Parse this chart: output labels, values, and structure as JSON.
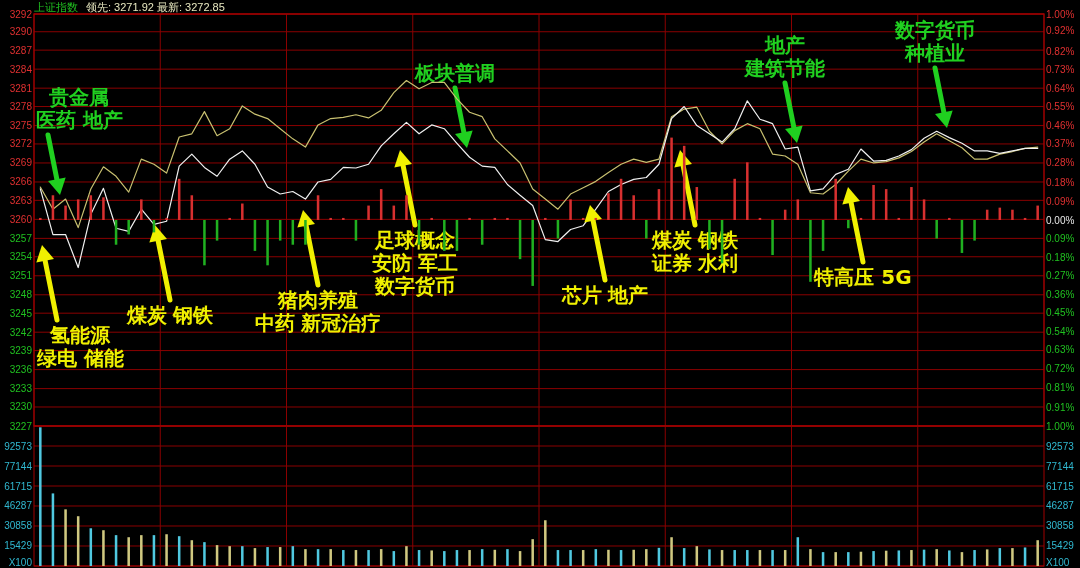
{
  "chart_data": [
    {
      "type": "line",
      "title": "上证指数",
      "subtitle": "领先: 3271.92 最新: 3272.85",
      "categories": [
        null,
        null,
        null,
        null,
        null,
        null,
        null,
        null,
        null,
        null,
        null,
        null,
        null,
        null,
        null,
        null,
        null,
        null,
        null,
        null,
        null,
        null,
        null,
        null,
        null,
        null,
        null,
        null,
        null,
        null,
        null,
        null,
        null,
        null,
        null,
        null,
        null,
        null,
        null,
        null,
        null,
        null,
        null,
        null,
        null,
        null,
        null,
        null,
        null,
        null,
        null,
        null,
        null,
        null,
        null,
        null,
        null,
        null,
        null,
        null,
        null,
        null,
        null,
        null,
        null,
        null,
        null,
        null,
        null,
        null,
        null,
        null,
        null,
        null,
        null,
        null,
        null,
        null,
        null,
        null
      ],
      "ylim": [
        3227.4,
        3292.4
      ],
      "yticks": [
        {
          "value": 3292.4,
          "label": "3292"
        },
        {
          "value": 3289.6,
          "label": "3290"
        },
        {
          "value": 3286.7,
          "label": "3287"
        },
        {
          "value": 3283.7,
          "label": "3284"
        },
        {
          "value": 3280.7,
          "label": "3281"
        },
        {
          "value": 3277.8,
          "label": "3278"
        },
        {
          "value": 3274.8,
          "label": "3275"
        },
        {
          "value": 3271.9,
          "label": "3272"
        },
        {
          "value": 3268.9,
          "label": "3269"
        },
        {
          "value": 3265.9,
          "label": "3266"
        },
        {
          "value": 3263.0,
          "label": "3263"
        },
        3260,
        {
          "value": 3257.0,
          "label": "3257"
        },
        {
          "value": 3254.1,
          "label": "3254"
        },
        {
          "value": 3251.1,
          "label": "3251"
        },
        {
          "value": 3248.1,
          "label": "3248"
        },
        {
          "value": 3245.2,
          "label": "3245"
        },
        {
          "value": 3242.2,
          "label": "3242"
        },
        {
          "value": 3239.3,
          "label": "3239"
        },
        {
          "value": 3236.3,
          "label": "3236"
        },
        {
          "value": 3233.3,
          "label": "3233"
        },
        {
          "value": 3230.4,
          "label": "3230"
        },
        {
          "value": 3227.4,
          "label": "3227"
        }
      ],
      "tick_labels": "y",
      "grid": true,
      "series": [
        {
          "color": "#c8c070",
          "values": [
            3265.1,
            3261.6,
            3263.2,
            3258.7,
            3264.8,
            3268.3,
            3266.8,
            3264.3,
            3269.5,
            3268.7,
            3267.3,
            3273.0,
            3273.5,
            3277.0,
            3273.2,
            3274.3,
            3277.9,
            3276.6,
            3275.9,
            3274.3,
            3272.7,
            3271.4,
            3274.9,
            3275.9,
            3276.1,
            3276.5,
            3276.0,
            3277.2,
            3280.0,
            3281.9,
            3280.6,
            3281.6,
            3281.6,
            3279.0,
            3276.9,
            3276.2,
            3272.7,
            3270.8,
            3268.9,
            3264.8,
            3263.2,
            3261.6,
            3264.0,
            3265.0,
            3266.0,
            3267.4,
            3268.7,
            3269.5,
            3269.0,
            3269.5,
            3276.2,
            3277.4,
            3277.7,
            3273.9,
            3271.9,
            3274.0,
            3275.1,
            3274.3,
            3270.3,
            3270.0,
            3268.7,
            3264.2,
            3264.0,
            3265.5,
            3267.6,
            3269.5,
            3268.9,
            3269.1,
            3269.7,
            3270.7,
            3272.2,
            3273.5,
            3272.4,
            3271.3,
            3269.5,
            3269.5,
            3270.3,
            3270.7,
            3271.2,
            3271.4
          ]
        },
        {
          "color": "#f0f0f0",
          "values": [
            3264.8,
            3257.6,
            3257.6,
            3252.4,
            3260.8,
            3264.9,
            3258.6,
            3258.1,
            3261.6,
            3259.2,
            3259.7,
            3268.4,
            3270.3,
            3268.2,
            3266.8,
            3269.5,
            3270.8,
            3268.7,
            3265.1,
            3264.0,
            3264.4,
            3263.2,
            3265.9,
            3266.3,
            3268.2,
            3268.1,
            3268.7,
            3271.6,
            3273.5,
            3275.3,
            3273.5,
            3274.9,
            3274.3,
            3272.0,
            3269.8,
            3268.4,
            3268.2,
            3265.5,
            3263.8,
            3262.2,
            3256.8,
            3256.5,
            3258.4,
            3259.0,
            3261.6,
            3264.4,
            3265.5,
            3266.3,
            3266.6,
            3268.7,
            3275.9,
            3277.8,
            3274.8,
            3273.5,
            3272.2,
            3274.3,
            3278.7,
            3275.8,
            3275.1,
            3271.1,
            3271.4,
            3264.5,
            3264.8,
            3267.1,
            3267.9,
            3271.1,
            3269.2,
            3269.3,
            3270.0,
            3271.0,
            3272.8,
            3273.9,
            3272.9,
            3272.0,
            3270.8,
            3270.8,
            3270.4,
            3270.8,
            3271.2,
            3271.2
          ]
        }
      ],
      "annotations": [
        "贵金属",
        "医药 地产",
        "板块普调",
        "地产",
        "建筑节能",
        "数字货币",
        "种植业"
      ]
    },
    {
      "type": "bar",
      "tick_labels": "y",
      "categories": [
        null,
        null,
        null,
        null,
        null,
        null,
        null,
        null,
        null,
        null,
        null,
        null,
        null,
        null,
        null,
        null,
        null,
        null,
        null,
        null,
        null,
        null,
        null,
        null,
        null,
        null,
        null,
        null,
        null,
        null,
        null,
        null,
        null,
        null,
        null,
        null,
        null,
        null,
        null,
        null,
        null,
        null,
        null,
        null,
        null,
        null,
        null,
        null,
        null,
        null,
        null,
        null,
        null,
        null,
        null,
        null,
        null,
        null,
        null,
        null,
        null,
        null,
        null,
        null,
        null,
        null,
        null,
        null,
        null,
        null,
        null,
        null,
        null,
        null,
        null,
        null,
        null,
        null,
        null,
        null
      ],
      "y2lim": [
        -1,
        1
      ],
      "y2ticks": [
        {
          "value": 1,
          "label": "1.00%"
        },
        {
          "value": 0.92,
          "label": "0.92%"
        },
        {
          "value": 0.82,
          "label": "0.82%"
        },
        {
          "value": 0.73,
          "label": "0.73%"
        },
        {
          "value": 0.64,
          "label": "0.64%"
        },
        {
          "value": 0.55,
          "label": "0.55%"
        },
        {
          "value": 0.46,
          "label": "0.46%"
        },
        {
          "value": 0.37,
          "label": "0.37%"
        },
        {
          "value": 0.28,
          "label": "0.28%"
        },
        {
          "value": 0.18,
          "label": "0.18%"
        },
        {
          "value": 0.09,
          "label": "0.09%"
        },
        {
          "value": 0,
          "label": "0.00%"
        },
        {
          "value": -0.09,
          "label": "0.09%"
        },
        {
          "value": -0.18,
          "label": "0.18%"
        },
        {
          "value": -0.27,
          "label": "0.27%"
        },
        {
          "value": -0.36,
          "label": "0.36%"
        },
        {
          "value": -0.45,
          "label": "0.45%"
        },
        {
          "value": -0.54,
          "label": "0.54%"
        },
        {
          "value": -0.63,
          "label": "0.63%"
        },
        {
          "value": -0.72,
          "label": "0.72%"
        },
        {
          "value": -0.815,
          "label": "0.81%"
        },
        {
          "value": -0.91,
          "label": "0.91%"
        },
        {
          "value": -1,
          "label": "1.00%"
        }
      ],
      "series": [
        {
          "axis": "y2",
          "values": [
            0.01,
            0.12,
            0.07,
            0.1,
            0.12,
            0.11,
            -0.12,
            -0.07,
            0.1,
            -0.06,
            0.01,
            0.2,
            0.12,
            -0.22,
            -0.1,
            0.01,
            0.08,
            -0.15,
            -0.22,
            -0.1,
            -0.12,
            -0.12,
            0.12,
            0.01,
            0.01,
            -0.1,
            0.07,
            0.15,
            0.07,
            0.12,
            -0.12,
            0.01,
            -0.15,
            -0.15,
            0.01,
            -0.12,
            0.01,
            0.01,
            -0.19,
            -0.32,
            0.01,
            -0.09,
            0.1,
            0.01,
            0.01,
            0.13,
            0.2,
            0.12,
            -0.09,
            0.15,
            0.4,
            0.36,
            0.16,
            -0.14,
            -0.21,
            0.2,
            0.28,
            0.01,
            -0.17,
            0.05,
            0.1,
            -0.3,
            -0.15,
            0.2,
            -0.04,
            0.01,
            0.17,
            0.15,
            0.01,
            0.16,
            0.1,
            -0.09,
            0.01,
            -0.16,
            -0.1,
            0.05,
            0.06,
            0.05,
            0.01,
            0.07
          ],
          "colors": [
            "#d83030",
            "#d83030",
            "#d83030",
            "#d83030",
            "#d83030",
            "#d83030",
            "#20b020",
            "#20b020",
            "#d83030",
            "#20b020",
            "#d83030",
            "#d83030",
            "#d83030",
            "#20b020",
            "#20b020",
            "#d83030",
            "#d83030",
            "#20b020",
            "#20b020",
            "#20b020",
            "#20b020",
            "#20b020",
            "#d83030",
            "#d83030",
            "#d83030",
            "#20b020",
            "#d83030",
            "#d83030",
            "#d83030",
            "#d83030",
            "#20b020",
            "#d83030",
            "#20b020",
            "#20b020",
            "#d83030",
            "#20b020",
            "#d83030",
            "#d83030",
            "#20b020",
            "#20b020",
            "#d83030",
            "#20b020",
            "#d83030",
            "#d83030",
            "#d83030",
            "#d83030",
            "#d83030",
            "#d83030",
            "#20b020",
            "#d83030",
            "#d83030",
            "#d83030",
            "#d83030",
            "#20b020",
            "#20b020",
            "#d83030",
            "#d83030",
            "#d83030",
            "#20b020",
            "#d83030",
            "#d83030",
            "#20b020",
            "#20b020",
            "#d83030",
            "#20b020",
            "#d83030",
            "#d83030",
            "#d83030",
            "#d83030",
            "#d83030",
            "#d83030",
            "#20b020",
            "#d83030",
            "#20b020",
            "#20b020",
            "#d83030",
            "#d83030",
            "#d83030",
            "#d83030",
            "#d83030"
          ]
        }
      ],
      "annotations": [
        "氢能源",
        "绿电 储能",
        "煤炭 钢铁",
        "猪肉养殖",
        "中药 新冠治疗",
        "足球概念",
        "安防 军工",
        "数字货币",
        "芯片 地产",
        "煤炭 钢铁",
        "证券 水利",
        "特高压 5G"
      ]
    },
    {
      "type": "bar",
      "categories": [
        null,
        null,
        null,
        null,
        null,
        null,
        null,
        null,
        null,
        null,
        null,
        null,
        null,
        null,
        null,
        null,
        null,
        null,
        null,
        null,
        null,
        null,
        null,
        null,
        null,
        null,
        null,
        null,
        null,
        null,
        null,
        null,
        null,
        null,
        null,
        null,
        null,
        null,
        null,
        null,
        null,
        null,
        null,
        null,
        null,
        null,
        null,
        null,
        null,
        null,
        null,
        null,
        null,
        null,
        null,
        null,
        null,
        null,
        null,
        null,
        null,
        null,
        null,
        null,
        null,
        null,
        null,
        null,
        null,
        null,
        null,
        null,
        null,
        null,
        null,
        null,
        null,
        null,
        null,
        null
      ],
      "ylim": [
        0,
        108002
      ],
      "yticks": [
        {
          "value": 0,
          "label": "X100"
        },
        15429,
        30858,
        46287,
        61715,
        77144,
        92573
      ],
      "y2lim": [
        0,
        108002
      ],
      "y2ticks": [
        {
          "value": 0,
          "label": "X100"
        },
        15429,
        30858,
        46287,
        61715,
        77144,
        92573
      ],
      "tick_labels": "y",
      "grid": true,
      "values": [
        107000,
        56000,
        43700,
        38400,
        29100,
        27600,
        23800,
        22200,
        23800,
        23800,
        24500,
        23000,
        19900,
        18400,
        16100,
        15300,
        15300,
        13800,
        14600,
        14600,
        15300,
        13000,
        13000,
        13000,
        12300,
        12300,
        12300,
        13000,
        11500,
        15300,
        12300,
        12000,
        11500,
        12300,
        12300,
        13000,
        12500,
        13000,
        11500,
        20700,
        35300,
        12300,
        12300,
        12300,
        13000,
        12500,
        12300,
        12500,
        13000,
        14000,
        22200,
        13800,
        15300,
        12800,
        12300,
        12300,
        12300,
        12300,
        12300,
        12300,
        22200,
        13000,
        10700,
        10700,
        10700,
        11000,
        11500,
        11800,
        12000,
        12300,
        12600,
        13000,
        12000,
        10700,
        12300,
        12800,
        13800,
        13800,
        14300,
        19900
      ],
      "colors": [
        "#50c8e0",
        "#50c8e0",
        "#d0c880",
        "#d0c880",
        "#50c8e0",
        "#d0c880",
        "#50c8e0",
        "#d0c880",
        "#d0c880",
        "#50c8e0",
        "#d0c880",
        "#50c8e0",
        "#d0c880",
        "#50c8e0",
        "#d0c880",
        "#d0c880",
        "#50c8e0",
        "#d0c880",
        "#50c8e0",
        "#d0c880",
        "#50c8e0",
        "#d0c880",
        "#50c8e0",
        "#d0c880",
        "#50c8e0",
        "#d0c880",
        "#50c8e0",
        "#d0c880",
        "#50c8e0",
        "#d0c880",
        "#50c8e0",
        "#d0c880",
        "#50c8e0",
        "#50c8e0",
        "#d0c880",
        "#50c8e0",
        "#d0c880",
        "#50c8e0",
        "#d0c880",
        "#d0c880",
        "#d0c880",
        "#50c8e0",
        "#50c8e0",
        "#d0c880",
        "#50c8e0",
        "#d0c880",
        "#50c8e0",
        "#d0c880",
        "#d0c880",
        "#50c8e0",
        "#d0c880",
        "#50c8e0",
        "#d0c880",
        "#50c8e0",
        "#d0c880",
        "#50c8e0",
        "#50c8e0",
        "#d0c880",
        "#50c8e0",
        "#d0c880",
        "#50c8e0",
        "#d0c880",
        "#50c8e0",
        "#d0c880",
        "#50c8e0",
        "#d0c880",
        "#50c8e0",
        "#d0c880",
        "#50c8e0",
        "#d0c880",
        "#50c8e0",
        "#d0c880",
        "#50c8e0",
        "#d0c880",
        "#50c8e0",
        "#d0c880",
        "#50c8e0",
        "#d0c880",
        "#50c8e0",
        "#d0c880"
      ]
    }
  ]
}
